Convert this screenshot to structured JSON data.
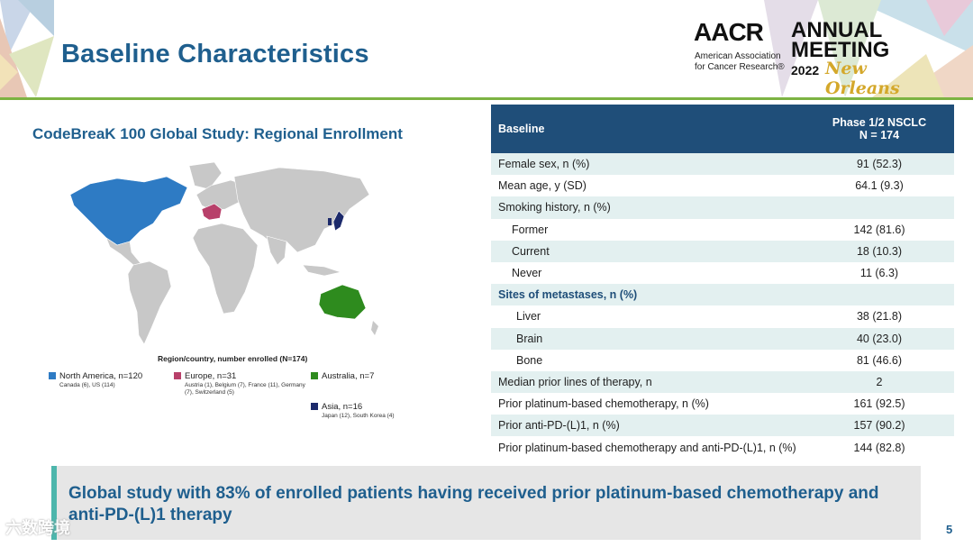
{
  "slide": {
    "title": "Baseline Characteristics",
    "page_number": "5"
  },
  "logo": {
    "acronym": "AACR",
    "org_line1": "American Association",
    "org_line2": "for Cancer Research®",
    "annual": "ANNUAL",
    "meeting": "MEETING",
    "year": "2022",
    "city": "New Orleans"
  },
  "map": {
    "title": "CodeBreaK 100 Global Study: Regional Enrollment",
    "caption": "Region/country, number enrolled (N=174)",
    "legend": [
      {
        "label": "North America, n=120",
        "detail": "Canada (6), US (114)",
        "color": "#2e7bc4"
      },
      {
        "label": "Europe, n=31",
        "detail": "Austria (1), Belgium (7), France (11), Germany (7), Switzerland (5)",
        "color": "#b8406a"
      },
      {
        "label": "Australia, n=7",
        "detail": "",
        "color": "#2e8b1e"
      },
      {
        "label": "Asia, n=16",
        "detail": "Japan (12), South Korea (4)",
        "color": "#1c2a6b"
      }
    ]
  },
  "table": {
    "header": {
      "col1": "Baseline",
      "col2_line1": "Phase 1/2 NSCLC",
      "col2_line2": "N = 174"
    },
    "rows": [
      {
        "label": "Female sex, n (%)",
        "value": "91 (52.3)"
      },
      {
        "label": "Mean age, y (SD)",
        "value": "64.1 (9.3)"
      },
      {
        "label": "Smoking history, n (%)",
        "value": ""
      },
      {
        "label": "Former",
        "value": "142 (81.6)"
      },
      {
        "label": "Current",
        "value": "18 (10.3)"
      },
      {
        "label": "Never",
        "value": "11 (6.3)"
      },
      {
        "label": "Sites of metastases, n (%)",
        "value": ""
      },
      {
        "label": "Liver",
        "value": "38 (21.8)"
      },
      {
        "label": "Brain",
        "value": "40 (23.0)"
      },
      {
        "label": "Bone",
        "value": "81 (46.6)"
      },
      {
        "label": "Median prior lines of therapy, n",
        "value": "2"
      },
      {
        "label": "Prior platinum-based chemotherapy, n (%)",
        "value": "161 (92.5)"
      },
      {
        "label": "Prior anti-PD-(L)1, n (%)",
        "value": "157 (90.2)"
      },
      {
        "label": "Prior platinum-based chemotherapy and anti-PD-(L)1, n (%)",
        "value": "144 (82.8)"
      }
    ]
  },
  "banner": {
    "text": "Global study with 83% of enrolled patients having received prior platinum-based chemotherapy and anti-PD-(L)1 therapy"
  },
  "watermark": {
    "text": "六数跨境"
  }
}
